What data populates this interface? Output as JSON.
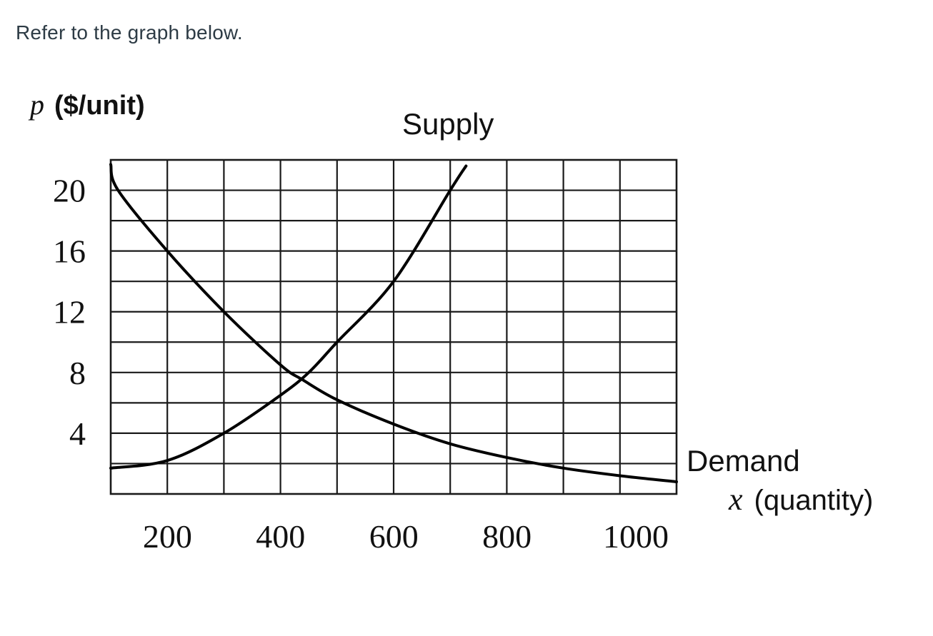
{
  "prompt": {
    "text": "Refer to the graph below."
  },
  "chart_data": {
    "type": "line",
    "title": "",
    "xlabel": "x (quantity)",
    "ylabel": "p ($/unit)",
    "xlabel_var": "x",
    "xlabel_unit": "(quantity)",
    "ylabel_var": "p",
    "ylabel_unit": "($/unit)",
    "xlim": [
      0,
      1000
    ],
    "ylim": [
      0,
      22
    ],
    "grid": true,
    "x_grid_step": 100,
    "y_grid_step": 2,
    "x_ticks": [
      200,
      400,
      600,
      800,
      1000
    ],
    "x_tick_labels": [
      "200",
      "400",
      "600",
      "800",
      "1000"
    ],
    "y_ticks": [
      4,
      8,
      12,
      16,
      20
    ],
    "y_tick_labels": [
      "4",
      "8",
      "12",
      "16",
      "20"
    ],
    "series": [
      {
        "name": "Supply",
        "x": [
          0,
          100,
          200,
          300,
          350,
          400,
          500,
          600,
          628
        ],
        "y": [
          1.7,
          2.2,
          4.0,
          6.5,
          8.0,
          10.0,
          14.0,
          20.0,
          21.6
        ]
      },
      {
        "name": "Demand",
        "x": [
          0,
          13,
          100,
          200,
          300,
          340,
          400,
          500,
          600,
          700,
          800,
          900,
          1000
        ],
        "y": [
          21.7,
          20.0,
          16.0,
          12.0,
          8.5,
          7.5,
          6.2,
          4.6,
          3.3,
          2.4,
          1.7,
          1.2,
          0.8
        ]
      }
    ],
    "annotations": [
      {
        "text": "Supply",
        "near": "top of supply curve"
      },
      {
        "text": "Demand",
        "near": "right end of demand curve"
      }
    ],
    "equilibrium_approx": {
      "x": 340,
      "p": 7.5
    }
  }
}
